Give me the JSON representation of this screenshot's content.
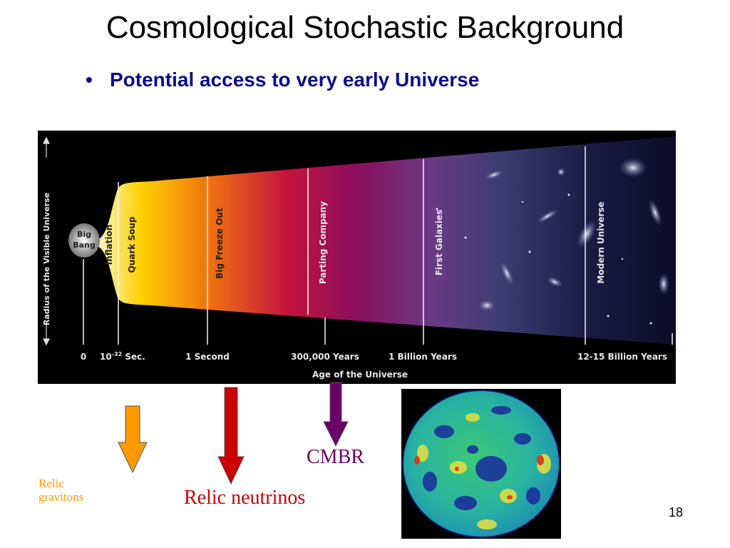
{
  "slide": {
    "title": "Cosmological Stochastic Background",
    "bullet": "Potential access to very early Universe",
    "page_number": "18"
  },
  "diagram": {
    "y_axis_label": "Radius of the Visible Universe",
    "origin_label_1": "Big",
    "origin_label_2": "Bang",
    "epochs": [
      "Inflation",
      "Quark Soup",
      "Big Freeze Out",
      "Parting Company",
      "First Galaxies",
      "Modern Universe"
    ],
    "ticks": [
      "0",
      "10",
      "-32",
      " Sec.",
      "1 Second",
      "300,000 Years",
      "1 Billion Years",
      "12-15 Billion Years"
    ],
    "x_axis_label": "Age of the Universe"
  },
  "captions": {
    "gravitons_1": "Relic",
    "gravitons_2": "gravitons",
    "neutrinos": "Relic neutrinos",
    "cmbr": "CMBR"
  },
  "colors": {
    "bullet": "#0b0b8a",
    "gravitons_arrow": "#ff9900",
    "neutrinos_arrow": "#cc0000",
    "cmbr_arrow": "#6b006b"
  }
}
